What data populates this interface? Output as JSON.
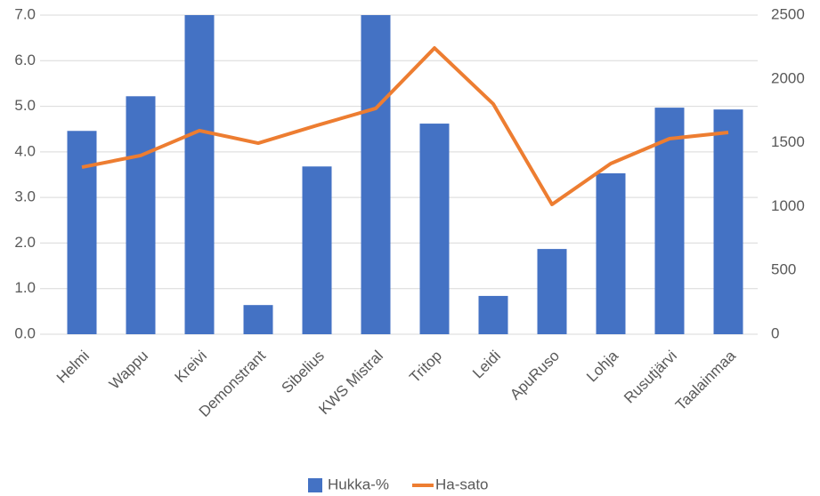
{
  "chart_data": {
    "type": "bar_line",
    "categories": [
      "Helmi",
      "Wappu",
      "Kreivi",
      "Demonstrant",
      "Sibelius",
      "KWS Mistral",
      "Tritop",
      "Leidi",
      "ApuRuso",
      "Lohja",
      "Rusutjärvi",
      "Taalainmaa"
    ],
    "series": [
      {
        "name": "Hukka-%",
        "type": "bar",
        "color": "#4472c4",
        "values": [
          4.46,
          5.22,
          7.0,
          0.64,
          3.68,
          7.0,
          4.62,
          0.84,
          1.87,
          3.53,
          4.97,
          4.93
        ]
      },
      {
        "name": "Ha-sato",
        "type": "line",
        "color": "#ed7d31",
        "axis": "y2",
        "values": [
          1309,
          1400,
          1595,
          1497,
          1636,
          1769,
          2242,
          1804,
          1017,
          1337,
          1532,
          1581
        ]
      }
    ],
    "ylim": [
      0,
      7
    ],
    "yticks": [
      {
        "value": 0,
        "label": "0.0"
      },
      {
        "value": 1,
        "label": "1.0"
      },
      {
        "value": 2,
        "label": "2.0"
      },
      {
        "value": 3,
        "label": "3.0"
      },
      {
        "value": 4,
        "label": "4.0"
      },
      {
        "value": 5,
        "label": "5.0"
      },
      {
        "value": 6,
        "label": "6.0"
      },
      {
        "value": 7,
        "label": "7.0"
      }
    ],
    "y2lim": [
      0,
      2500
    ],
    "y2ticks": [
      0,
      500,
      1000,
      1500,
      2000,
      2500
    ],
    "grid": true,
    "legend": "bottom"
  }
}
